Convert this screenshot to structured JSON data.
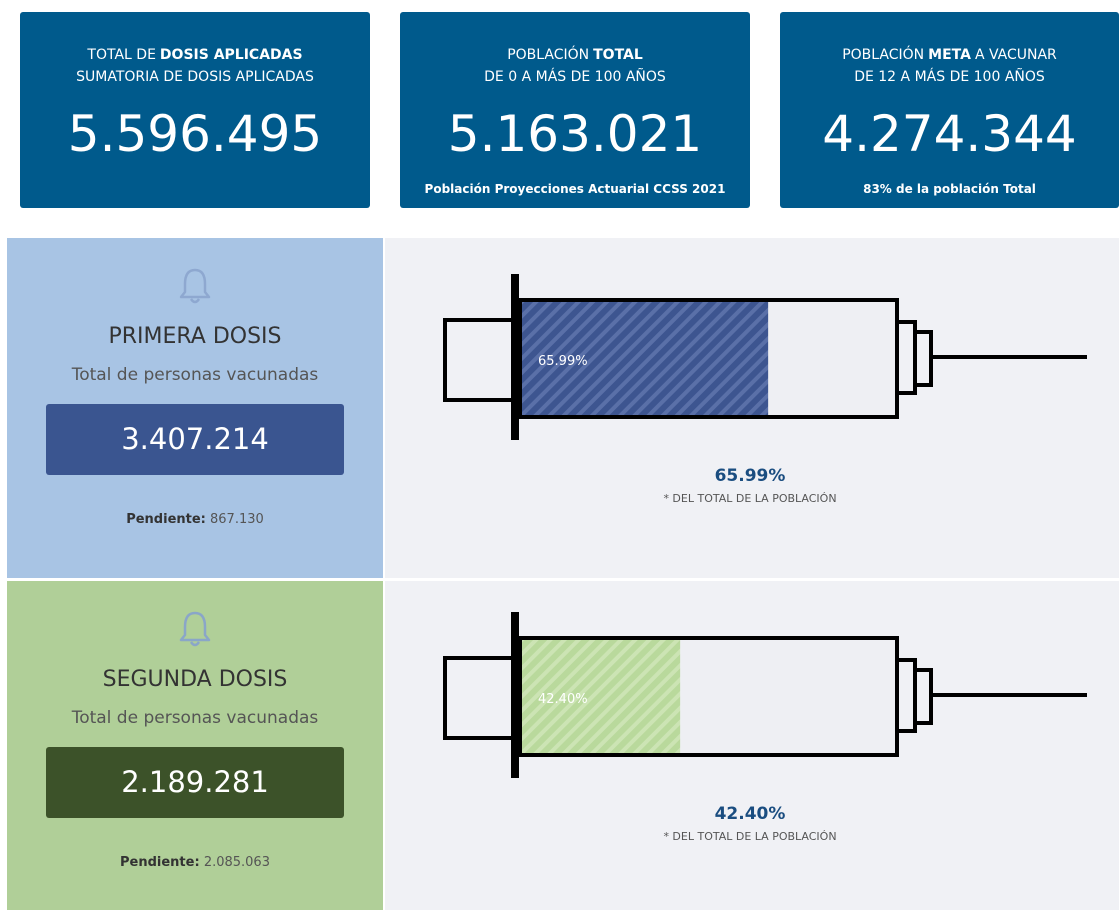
{
  "cards": [
    {
      "line1": [
        {
          "text": "TOTAL DE",
          "bold": false
        },
        {
          "text": "DOSIS APLICADAS",
          "bold": true
        }
      ],
      "line2": "SUMATORIA DE DOSIS APLICADAS",
      "value": "5.596.495"
    },
    {
      "line1": [
        {
          "text": "POBLACIÓN",
          "bold": false
        },
        {
          "text": "TOTAL",
          "bold": true
        }
      ],
      "line2": "DE 0 A MÁS DE 100 AÑOS",
      "value": "5.163.021",
      "footnote": "Población Proyecciones Actuarial CCSS 2021"
    },
    {
      "line1": [
        {
          "text": "POBLACIÓN",
          "bold": false
        },
        {
          "text": "META",
          "bold": true
        },
        {
          "text": "A VACUNAR",
          "bold": false
        }
      ],
      "line2": "DE 12 A MÁS DE 100 AÑOS",
      "value": "4.274.344",
      "footnote": "83% de la población Total"
    }
  ],
  "doses": [
    {
      "title": "PRIMERA DOSIS",
      "subtitle": "Total de personas vacunadas",
      "count": "3.407.214",
      "pending_label": "Pendiente:",
      "pending": "867.130",
      "percent": 65.99,
      "percent_label": "65.99%",
      "note": "* DEL TOTAL DE LA POBLACIÓN"
    },
    {
      "title": "SEGUNDA DOSIS",
      "subtitle": "Total de personas vacunadas",
      "count": "2.189.281",
      "pending_label": "Pendiente:",
      "pending": "2.085.063",
      "percent": 42.4,
      "percent_label": "42.40%",
      "note": "* DEL TOTAL DE LA POBLACIÓN"
    }
  ]
}
